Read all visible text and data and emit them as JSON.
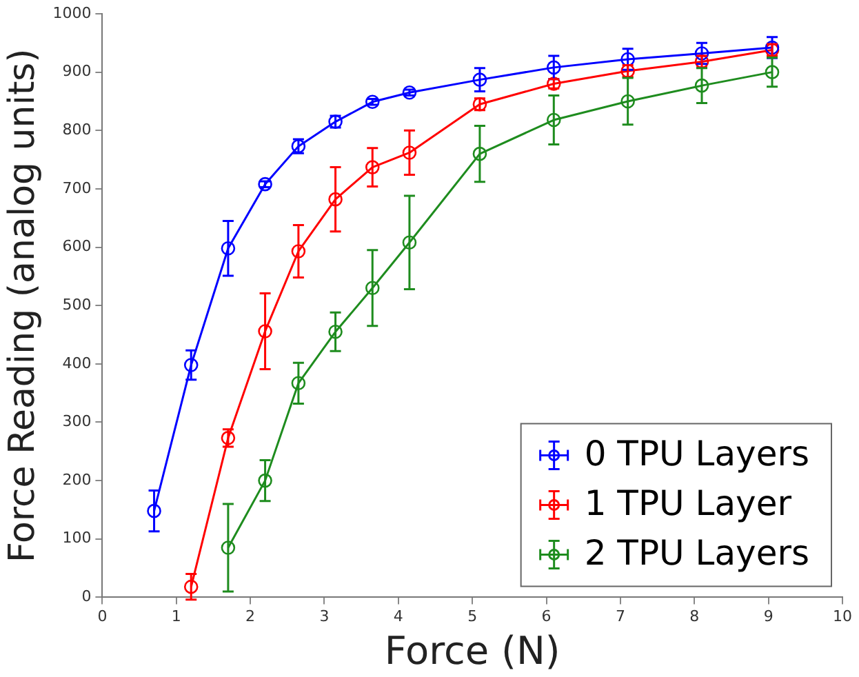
{
  "chart_data": {
    "type": "line",
    "xlabel": "Force (N)",
    "ylabel": "Force Reading (analog units)",
    "xlim": [
      0,
      10
    ],
    "xticks": [
      0,
      1,
      2,
      3,
      4,
      5,
      6,
      7,
      8,
      9,
      10
    ],
    "ylim": [
      0,
      1000
    ],
    "yticks": [
      0,
      100,
      200,
      300,
      400,
      500,
      600,
      700,
      800,
      900,
      1000
    ],
    "grid": false,
    "legend": "bottom right",
    "marker": "circle",
    "line_style": "solid",
    "series": [
      {
        "name": "0 TPU Layers",
        "color": "#0000ff",
        "x": [
          0.7,
          1.2,
          1.7,
          2.2,
          2.65,
          3.15,
          3.65,
          4.15,
          5.1,
          6.1,
          7.1,
          8.1,
          9.05
        ],
        "values": [
          148,
          398,
          598,
          708,
          773,
          815,
          849,
          865,
          887,
          908,
          922,
          932,
          942
        ],
        "errors": [
          35,
          25,
          47,
          5,
          12,
          10,
          5,
          5,
          20,
          20,
          18,
          18,
          18
        ]
      },
      {
        "name": "1 TPU Layer",
        "color": "#ff0000",
        "x": [
          1.2,
          1.7,
          2.2,
          2.65,
          3.15,
          3.65,
          4.15,
          5.1,
          6.1,
          7.1,
          8.1,
          9.05
        ],
        "values": [
          18,
          273,
          456,
          593,
          682,
          737,
          762,
          845,
          880,
          902,
          918,
          938
        ],
        "errors": [
          22,
          15,
          65,
          45,
          55,
          33,
          38,
          10,
          8,
          10,
          10,
          10
        ]
      },
      {
        "name": "2 TPU Layers",
        "color": "#1e8c1e",
        "x": [
          1.7,
          2.2,
          2.65,
          3.15,
          3.65,
          4.15,
          5.1,
          6.1,
          7.1,
          8.1,
          9.05
        ],
        "values": [
          85,
          200,
          367,
          455,
          530,
          608,
          760,
          818,
          850,
          877,
          900
        ],
        "errors": [
          75,
          35,
          35,
          33,
          65,
          80,
          48,
          42,
          40,
          30,
          25
        ]
      }
    ]
  }
}
